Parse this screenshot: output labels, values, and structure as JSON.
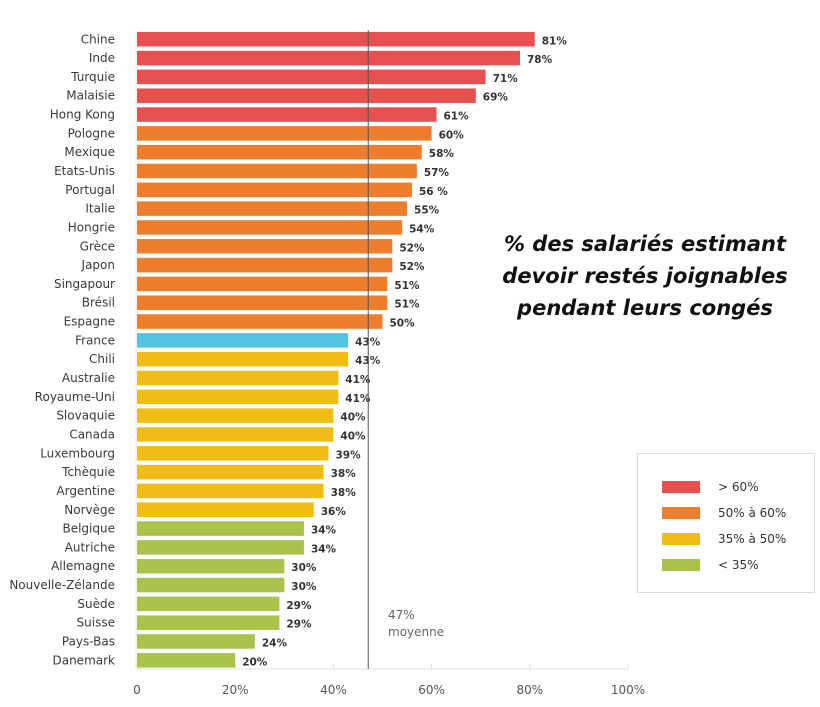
{
  "chart_data": {
    "type": "bar",
    "orientation": "horizontal",
    "title": "% des salariés estimant devoir restés joignables pendant leurs congés",
    "title_lines": [
      "% des salariés estimant",
      "devoir restés joignables",
      "pendant leurs congés"
    ],
    "xlabel": "",
    "ylabel": "",
    "xlim": [
      0,
      100
    ],
    "x_ticks": [
      0,
      20,
      40,
      60,
      80,
      100
    ],
    "x_tick_labels": [
      "0",
      "20%",
      "40%",
      "60%",
      "80%",
      "100%"
    ],
    "grid": false,
    "legend_position": "bottom-right",
    "categories": [
      "Chine",
      "Inde",
      "Turquie",
      "Malaisie",
      "Hong Kong",
      "Pologne",
      "Mexique",
      "Etats-Unis",
      "Portugal",
      "Italie",
      "Hongrie",
      "Grèce",
      "Japon",
      "Singapour",
      "Brésil",
      "Espagne",
      "France",
      "Chili",
      "Australie",
      "Royaume-Uni",
      "Slovaquie",
      "Canada",
      "Luxembourg",
      "Tchèquie",
      "Argentine",
      "Norvège",
      "Belgique",
      "Autriche",
      "Allemagne",
      "Nouvelle-Zélande",
      "Suède",
      "Suisse",
      "Pays-Bas",
      "Danemark"
    ],
    "values": [
      81,
      78,
      71,
      69,
      61,
      60,
      58,
      57,
      56,
      55,
      54,
      52,
      52,
      51,
      51,
      50,
      43,
      43,
      41,
      41,
      40,
      40,
      39,
      38,
      38,
      36,
      34,
      34,
      30,
      30,
      29,
      29,
      24,
      20
    ],
    "value_labels": [
      "81%",
      "78%",
      "71%",
      "69%",
      "61%",
      "60%",
      "58%",
      "57%",
      "56 %",
      "55%",
      "54%",
      "52%",
      "52%",
      "51%",
      "51%",
      "50%",
      "43%",
      "43%",
      "41%",
      "41%",
      "40%",
      "40%",
      "39%",
      "38%",
      "38%",
      "36%",
      "34%",
      "34%",
      "30%",
      "30%",
      "29%",
      "29%",
      "24%",
      "20%"
    ],
    "groups": [
      "high",
      "high",
      "high",
      "high",
      "high",
      "mid",
      "mid",
      "mid",
      "mid",
      "mid",
      "mid",
      "mid",
      "mid",
      "mid",
      "mid",
      "mid",
      "france",
      "low",
      "low",
      "low",
      "low",
      "low",
      "low",
      "low",
      "low",
      "low",
      "vlow",
      "vlow",
      "vlow",
      "vlow",
      "vlow",
      "vlow",
      "vlow",
      "vlow"
    ],
    "highlight_category": "France",
    "average": {
      "value": 47,
      "label_value": "47%",
      "label_text": "moyenne"
    },
    "legend": [
      {
        "key": "high",
        "label": "> 60%",
        "color": "#e84f4f"
      },
      {
        "key": "mid",
        "label": "50% à 60%",
        "color": "#ec7e2d"
      },
      {
        "key": "low",
        "label": "35% à 50%",
        "color": "#f0bd14"
      },
      {
        "key": "vlow",
        "label": "< 35%",
        "color": "#a9c24a"
      }
    ],
    "colors": {
      "high": "#e84f4f",
      "mid": "#ec7e2d",
      "low": "#f0bd14",
      "vlow": "#a9c24a",
      "france": "#55c2e0",
      "france_label": "#4bb8dc",
      "average_line": "#555555"
    }
  }
}
